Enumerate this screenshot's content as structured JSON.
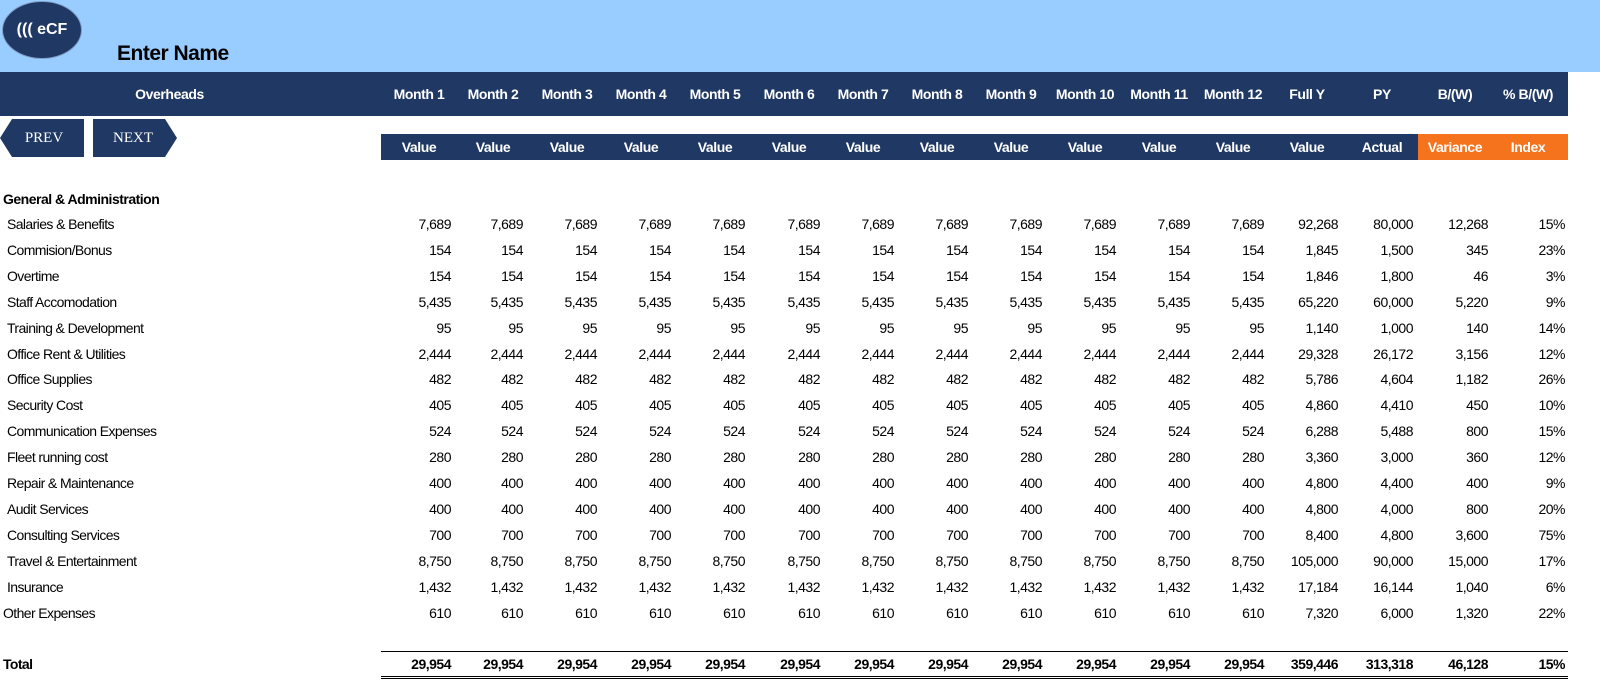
{
  "logo_text": "((( eCF",
  "title": "Enter Name",
  "nav": {
    "prev": "PREV",
    "next": "NEXT"
  },
  "colors": {
    "header_navy": "#1f3864",
    "top_band": "#99ccff",
    "accent_orange": "#f4731c"
  },
  "header": {
    "overheads": "Overheads",
    "columns": [
      "Month 1",
      "Month 2",
      "Month 3",
      "Month 4",
      "Month 5",
      "Month 6",
      "Month 7",
      "Month 8",
      "Month 9",
      "Month 10",
      "Month 11",
      "Month 12",
      "Full Y",
      "PY",
      "B/(W)",
      "% B/(W)"
    ],
    "subcolumns": [
      "Value",
      "Value",
      "Value",
      "Value",
      "Value",
      "Value",
      "Value",
      "Value",
      "Value",
      "Value",
      "Value",
      "Value",
      "Value",
      "Actual",
      "Variance",
      "Index"
    ]
  },
  "section_title": "General & Administration",
  "rows": [
    {
      "label": "Salaries & Benefits",
      "values": [
        "7,689",
        "7,689",
        "7,689",
        "7,689",
        "7,689",
        "7,689",
        "7,689",
        "7,689",
        "7,689",
        "7,689",
        "7,689",
        "7,689",
        "92,268",
        "80,000",
        "12,268",
        "15%"
      ]
    },
    {
      "label": "Commision/Bonus",
      "values": [
        "154",
        "154",
        "154",
        "154",
        "154",
        "154",
        "154",
        "154",
        "154",
        "154",
        "154",
        "154",
        "1,845",
        "1,500",
        "345",
        "23%"
      ]
    },
    {
      "label": "Overtime",
      "values": [
        "154",
        "154",
        "154",
        "154",
        "154",
        "154",
        "154",
        "154",
        "154",
        "154",
        "154",
        "154",
        "1,846",
        "1,800",
        "46",
        "3%"
      ]
    },
    {
      "label": "Staff Accomodation",
      "values": [
        "5,435",
        "5,435",
        "5,435",
        "5,435",
        "5,435",
        "5,435",
        "5,435",
        "5,435",
        "5,435",
        "5,435",
        "5,435",
        "5,435",
        "65,220",
        "60,000",
        "5,220",
        "9%"
      ]
    },
    {
      "label": "Training & Development",
      "values": [
        "95",
        "95",
        "95",
        "95",
        "95",
        "95",
        "95",
        "95",
        "95",
        "95",
        "95",
        "95",
        "1,140",
        "1,000",
        "140",
        "14%"
      ]
    },
    {
      "label": "Office Rent & Utilities",
      "values": [
        "2,444",
        "2,444",
        "2,444",
        "2,444",
        "2,444",
        "2,444",
        "2,444",
        "2,444",
        "2,444",
        "2,444",
        "2,444",
        "2,444",
        "29,328",
        "26,172",
        "3,156",
        "12%"
      ]
    },
    {
      "label": "Office Supplies",
      "values": [
        "482",
        "482",
        "482",
        "482",
        "482",
        "482",
        "482",
        "482",
        "482",
        "482",
        "482",
        "482",
        "5,786",
        "4,604",
        "1,182",
        "26%"
      ]
    },
    {
      "label": "Security Cost",
      "values": [
        "405",
        "405",
        "405",
        "405",
        "405",
        "405",
        "405",
        "405",
        "405",
        "405",
        "405",
        "405",
        "4,860",
        "4,410",
        "450",
        "10%"
      ]
    },
    {
      "label": "Communication Expenses",
      "values": [
        "524",
        "524",
        "524",
        "524",
        "524",
        "524",
        "524",
        "524",
        "524",
        "524",
        "524",
        "524",
        "6,288",
        "5,488",
        "800",
        "15%"
      ]
    },
    {
      "label": "Fleet running cost",
      "values": [
        "280",
        "280",
        "280",
        "280",
        "280",
        "280",
        "280",
        "280",
        "280",
        "280",
        "280",
        "280",
        "3,360",
        "3,000",
        "360",
        "12%"
      ]
    },
    {
      "label": "Repair & Maintenance",
      "values": [
        "400",
        "400",
        "400",
        "400",
        "400",
        "400",
        "400",
        "400",
        "400",
        "400",
        "400",
        "400",
        "4,800",
        "4,400",
        "400",
        "9%"
      ]
    },
    {
      "label": "Audit Services",
      "values": [
        "400",
        "400",
        "400",
        "400",
        "400",
        "400",
        "400",
        "400",
        "400",
        "400",
        "400",
        "400",
        "4,800",
        "4,000",
        "800",
        "20%"
      ]
    },
    {
      "label": "Consulting Services",
      "values": [
        "700",
        "700",
        "700",
        "700",
        "700",
        "700",
        "700",
        "700",
        "700",
        "700",
        "700",
        "700",
        "8,400",
        "4,800",
        "3,600",
        "75%"
      ]
    },
    {
      "label": "Travel & Entertainment",
      "values": [
        "8,750",
        "8,750",
        "8,750",
        "8,750",
        "8,750",
        "8,750",
        "8,750",
        "8,750",
        "8,750",
        "8,750",
        "8,750",
        "8,750",
        "105,000",
        "90,000",
        "15,000",
        "17%"
      ]
    },
    {
      "label": "Insurance",
      "values": [
        "1,432",
        "1,432",
        "1,432",
        "1,432",
        "1,432",
        "1,432",
        "1,432",
        "1,432",
        "1,432",
        "1,432",
        "1,432",
        "1,432",
        "17,184",
        "16,144",
        "1,040",
        "6%"
      ]
    },
    {
      "label": "Other Expenses",
      "values": [
        "610",
        "610",
        "610",
        "610",
        "610",
        "610",
        "610",
        "610",
        "610",
        "610",
        "610",
        "610",
        "7,320",
        "6,000",
        "1,320",
        "22%"
      ]
    }
  ],
  "total": {
    "label": "Total",
    "values": [
      "29,954",
      "29,954",
      "29,954",
      "29,954",
      "29,954",
      "29,954",
      "29,954",
      "29,954",
      "29,954",
      "29,954",
      "29,954",
      "29,954",
      "359,446",
      "313,318",
      "46,128",
      "15%"
    ]
  }
}
